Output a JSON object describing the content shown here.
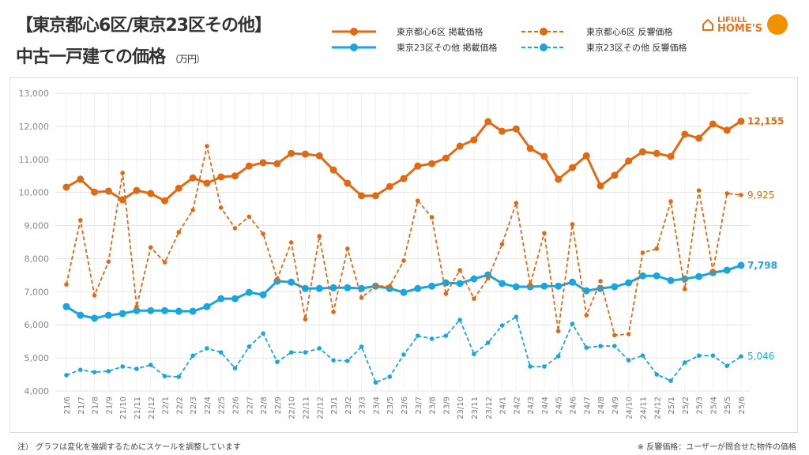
{
  "header": {
    "title_line1": "【東京都心6区/東京23区その他】",
    "title_line2": "中古一戸建ての価格",
    "unit": "（万円）"
  },
  "logo": {
    "line1": "LIFULL",
    "line2": "HOME'S"
  },
  "footnote_left": "注） グラフは変化を強調するためにスケールを調整しています",
  "footnote_right": "※ 反響価格：ユーザーが問合せた物件の価格",
  "chart_data": {
    "type": "line",
    "ylim": [
      4000,
      13000
    ],
    "yticks": [
      "4,000",
      "5,000",
      "6,000",
      "7,000",
      "8,000",
      "9,000",
      "10,000",
      "11,000",
      "12,000",
      "13,000"
    ],
    "grid": true,
    "legend_position": "top",
    "categories": [
      "21/6",
      "21/7",
      "21/8",
      "21/9",
      "21/10",
      "21/11",
      "21/12",
      "22/1",
      "22/2",
      "22/3",
      "22/4",
      "22/5",
      "22/6",
      "22/7",
      "22/8",
      "22/9",
      "22/10",
      "22/11",
      "22/12",
      "23/1",
      "23/2",
      "23/3",
      "23/4",
      "23/5",
      "23/6",
      "23/7",
      "23/8",
      "23/9",
      "23/10",
      "23/11",
      "23/12",
      "24/1",
      "24/2",
      "24/3",
      "24/4",
      "24/5",
      "24/6",
      "24/7",
      "24/8",
      "24/9",
      "24/10",
      "24/11",
      "24/12",
      "25/1",
      "25/2",
      "25/3",
      "25/4",
      "25/5",
      "25/6"
    ],
    "series": [
      {
        "name": "東京都心6区 掲載価格",
        "color": "#e06a14",
        "dashed": false,
        "end_label": "12,155",
        "values": [
          10160,
          10400,
          10010,
          10040,
          9780,
          10060,
          9970,
          9750,
          10130,
          10440,
          10280,
          10470,
          10500,
          10800,
          10900,
          10870,
          11180,
          11160,
          11110,
          10680,
          10280,
          9900,
          9900,
          10180,
          10420,
          10800,
          10870,
          11040,
          11400,
          11590,
          12140,
          11850,
          11920,
          11330,
          11090,
          10400,
          10750,
          11110,
          10200,
          10520,
          10950,
          11230,
          11180,
          11090,
          11760,
          11640,
          12070,
          11880,
          12155
        ]
      },
      {
        "name": "東京23区その他 掲載価格",
        "color": "#1aa6dc",
        "dashed": false,
        "end_label": "7,798",
        "values": [
          6550,
          6290,
          6200,
          6290,
          6340,
          6430,
          6430,
          6430,
          6410,
          6410,
          6550,
          6790,
          6790,
          6980,
          6910,
          7320,
          7290,
          7100,
          7100,
          7120,
          7120,
          7100,
          7170,
          7100,
          6980,
          7100,
          7170,
          7270,
          7250,
          7390,
          7510,
          7250,
          7150,
          7150,
          7170,
          7170,
          7290,
          7030,
          7100,
          7150,
          7270,
          7480,
          7480,
          7340,
          7390,
          7460,
          7580,
          7650,
          7798
        ]
      },
      {
        "name": "東京都心6区 反響価格",
        "color": "#e06a14",
        "dashed": true,
        "end_label": "9,925",
        "values": [
          7220,
          9160,
          6890,
          7910,
          10590,
          6550,
          8340,
          7890,
          8800,
          9470,
          11400,
          9540,
          8920,
          9270,
          8750,
          7390,
          8490,
          6170,
          8680,
          6390,
          8300,
          6820,
          7170,
          7170,
          7940,
          9750,
          9250,
          6940,
          7650,
          6790,
          7410,
          8440,
          9680,
          7220,
          8770,
          5810,
          9040,
          6290,
          7320,
          5690,
          5720,
          8180,
          8300,
          9730,
          7080,
          10060,
          7630,
          9970,
          9925
        ]
      },
      {
        "name": "東京23区その他 反響価格",
        "color": "#1aa6dc",
        "dashed": true,
        "end_label": "5,046",
        "values": [
          4480,
          4640,
          4570,
          4600,
          4740,
          4670,
          4790,
          4450,
          4430,
          5070,
          5290,
          5170,
          4690,
          5340,
          5740,
          4880,
          5170,
          5170,
          5290,
          4930,
          4910,
          5340,
          4260,
          4430,
          5100,
          5670,
          5580,
          5670,
          6150,
          5120,
          5460,
          5980,
          6240,
          4740,
          4740,
          5050,
          6030,
          5310,
          5360,
          5360,
          4930,
          5070,
          4500,
          4310,
          4860,
          5070,
          5070,
          4760,
          5046
        ]
      }
    ]
  }
}
